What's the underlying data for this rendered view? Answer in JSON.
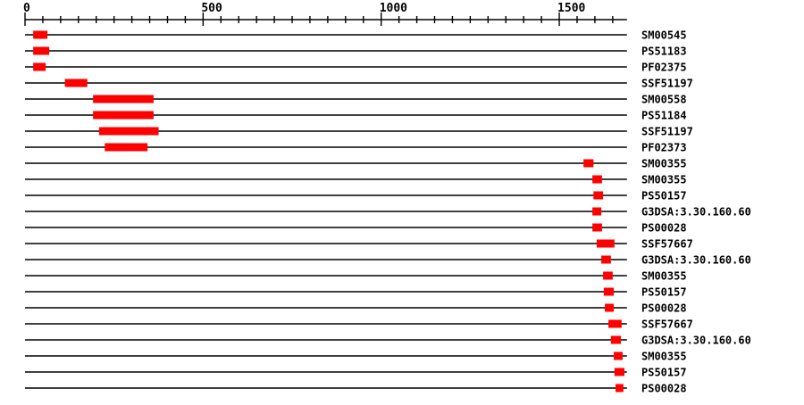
{
  "chart_data": {
    "type": "domain-architecture",
    "title": "",
    "description": "Protein signature matches drawn as red boxes on residue-coordinate baselines",
    "axis": {
      "min": 0,
      "max": 1690,
      "major_ticks": [
        0,
        500,
        1000,
        1500
      ],
      "minor_tick_interval": 50,
      "tick_label_align": "left"
    },
    "colors": {
      "feature": "#ff0000",
      "line": "#000000",
      "text": "#000000",
      "background": "#ffffff"
    },
    "rows": [
      {
        "label": "SM00545",
        "start": 23,
        "end": 63
      },
      {
        "label": "PS51183",
        "start": 23,
        "end": 68
      },
      {
        "label": "PF02375",
        "start": 23,
        "end": 58
      },
      {
        "label": "SSF51197",
        "start": 112,
        "end": 175
      },
      {
        "label": "SM00558",
        "start": 191,
        "end": 361
      },
      {
        "label": "PS51184",
        "start": 191,
        "end": 361
      },
      {
        "label": "SSF51197",
        "start": 208,
        "end": 375
      },
      {
        "label": "PF02373",
        "start": 224,
        "end": 344
      },
      {
        "label": "SM00355",
        "start": 1568,
        "end": 1596
      },
      {
        "label": "SM00355",
        "start": 1593,
        "end": 1620
      },
      {
        "label": "PS50157",
        "start": 1596,
        "end": 1623
      },
      {
        "label": "G3DSA:3.30.160.60",
        "start": 1593,
        "end": 1618
      },
      {
        "label": "PS00028",
        "start": 1593,
        "end": 1620
      },
      {
        "label": "SSF57667",
        "start": 1605,
        "end": 1655
      },
      {
        "label": "G3DSA:3.30.160.60",
        "start": 1618,
        "end": 1645
      },
      {
        "label": "SM00355",
        "start": 1623,
        "end": 1650
      },
      {
        "label": "PS50157",
        "start": 1625,
        "end": 1653
      },
      {
        "label": "PS00028",
        "start": 1628,
        "end": 1653
      },
      {
        "label": "SSF57667",
        "start": 1638,
        "end": 1675
      },
      {
        "label": "G3DSA:3.30.160.60",
        "start": 1645,
        "end": 1673
      },
      {
        "label": "SM00355",
        "start": 1653,
        "end": 1678
      },
      {
        "label": "PS50157",
        "start": 1655,
        "end": 1683
      },
      {
        "label": "PS00028",
        "start": 1658,
        "end": 1680
      }
    ]
  }
}
